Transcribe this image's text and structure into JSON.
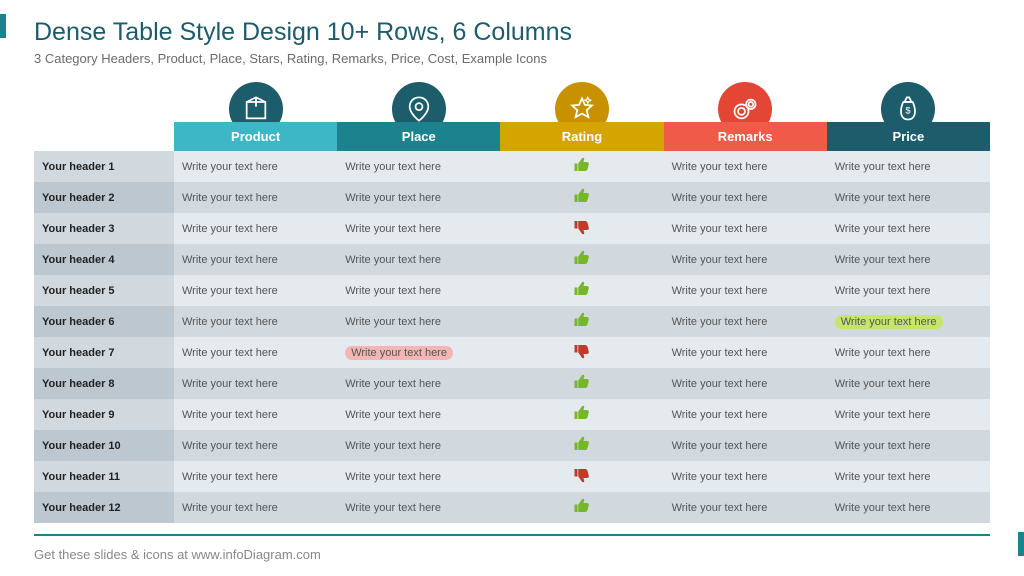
{
  "title": "Dense Table Style Design 10+ Rows, 6 Columns",
  "subtitle": "3 Category Headers, Product, Place, Stars, Rating, Remarks, Price, Cost, Example Icons",
  "title_color": "#1c5c6b",
  "subtitle_color": "#6b6b6b",
  "footer_text": "Get these slides & icons at www.infoDiagram.com",
  "side_accent_color": "#1c828e",
  "bottom_rule_color": "#1c828e",
  "columns": [
    {
      "label": "Product",
      "bg": "#3db6c5",
      "icon": "box",
      "icon_bg": "#1c5c6b"
    },
    {
      "label": "Place",
      "bg": "#1c828e",
      "icon": "pin",
      "icon_bg": "#1c5c6b"
    },
    {
      "label": "Rating",
      "bg": "#d4a400",
      "icon": "star",
      "icon_bg": "#c89100"
    },
    {
      "label": "Remarks",
      "bg": "#ef5a49",
      "icon": "gear",
      "icon_bg": "#e44636"
    },
    {
      "label": "Price",
      "bg": "#1c5c6b",
      "icon": "moneybag",
      "icon_bg": "#1c5c6b"
    }
  ],
  "row_header_col_width": 140,
  "cell_placeholder": "Write your text here",
  "cell_text_color": "#555555",
  "row_header_text_color": "#222222",
  "stripe_colors": {
    "even": "#e5eaef",
    "odd": "#d1d9df",
    "row_header_even": "#d1d9df",
    "row_header_odd": "#bcc7cf"
  },
  "rating_icons": {
    "up": {
      "color": "#76b72a"
    },
    "down": {
      "color": "#c0392b"
    }
  },
  "rows": [
    {
      "header": "Your header 1",
      "rating": "up"
    },
    {
      "header": "Your header 2",
      "rating": "up"
    },
    {
      "header": "Your header 3",
      "rating": "down"
    },
    {
      "header": "Your header 4",
      "rating": "up"
    },
    {
      "header": "Your header 5",
      "rating": "up"
    },
    {
      "header": "Your header 6",
      "rating": "up",
      "price_highlight": "#c6e66a"
    },
    {
      "header": "Your header 7",
      "rating": "down",
      "place_highlight": "#f4b5b5"
    },
    {
      "header": "Your header 8",
      "rating": "up"
    },
    {
      "header": "Your header 9",
      "rating": "up"
    },
    {
      "header": "Your header 10",
      "rating": "up"
    },
    {
      "header": "Your header 11",
      "rating": "down"
    },
    {
      "header": "Your header 12",
      "rating": "up"
    }
  ]
}
